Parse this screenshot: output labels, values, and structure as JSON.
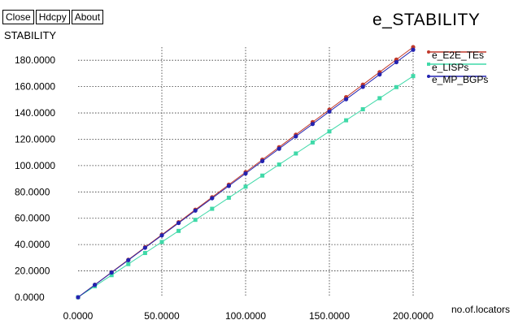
{
  "window": {
    "title": "e_STABILITY"
  },
  "toolbar": {
    "close_label": "Close",
    "hdcpy_label": "Hdcpy",
    "about_label": "About"
  },
  "chart_data": {
    "type": "line",
    "title": "e_STABILITY",
    "xlabel": "no.of.locators",
    "ylabel": "STABILITY",
    "xlim": [
      0,
      200
    ],
    "ylim": [
      0,
      190
    ],
    "grid": true,
    "legend_position": "top-right",
    "x_ticks": [
      {
        "value": 0,
        "label": "0.0000"
      },
      {
        "value": 50,
        "label": "50.0000"
      },
      {
        "value": 100,
        "label": "100.0000"
      },
      {
        "value": 150,
        "label": "150.0000"
      },
      {
        "value": 200,
        "label": "200.0000"
      }
    ],
    "y_ticks": [
      {
        "value": 0,
        "label": "0.0000"
      },
      {
        "value": 20,
        "label": "20.0000"
      },
      {
        "value": 40,
        "label": "40.0000"
      },
      {
        "value": 60,
        "label": "60.0000"
      },
      {
        "value": 80,
        "label": "80.0000"
      },
      {
        "value": 100,
        "label": "100.0000"
      },
      {
        "value": 120,
        "label": "120.0000"
      },
      {
        "value": 140,
        "label": "140.0000"
      },
      {
        "value": 160,
        "label": "160.0000"
      },
      {
        "value": 180,
        "label": "180.0000"
      }
    ],
    "x": [
      0,
      10,
      20,
      30,
      40,
      50,
      60,
      70,
      80,
      90,
      100,
      110,
      120,
      130,
      140,
      150,
      160,
      170,
      180,
      190,
      200
    ],
    "series": [
      {
        "name": "e_E2E_TEs",
        "color": "#c0392b",
        "marker": "dot",
        "values": [
          0,
          9.5,
          19,
          28.5,
          38,
          47.5,
          57,
          66.5,
          76,
          85.5,
          95,
          104.5,
          114,
          123.5,
          133,
          142.5,
          152,
          161.5,
          171,
          180.5,
          190
        ]
      },
      {
        "name": "e_LISPs",
        "color": "#3fd9a8",
        "marker": "square",
        "values": [
          0,
          8.4,
          16.8,
          25.2,
          33.6,
          42,
          50.4,
          58.8,
          67.2,
          75.6,
          84,
          92.4,
          100.8,
          109.2,
          117.6,
          126,
          134.4,
          142.8,
          151.2,
          159.6,
          168
        ]
      },
      {
        "name": "e_MP_BGPs",
        "color": "#2323b0",
        "marker": "dot",
        "values": [
          0,
          9.4,
          18.8,
          28.2,
          37.6,
          47,
          56.4,
          65.8,
          75.2,
          84.6,
          94,
          103.4,
          112.8,
          122.2,
          131.6,
          141,
          150.4,
          159.8,
          169.2,
          178.6,
          188
        ]
      }
    ]
  }
}
